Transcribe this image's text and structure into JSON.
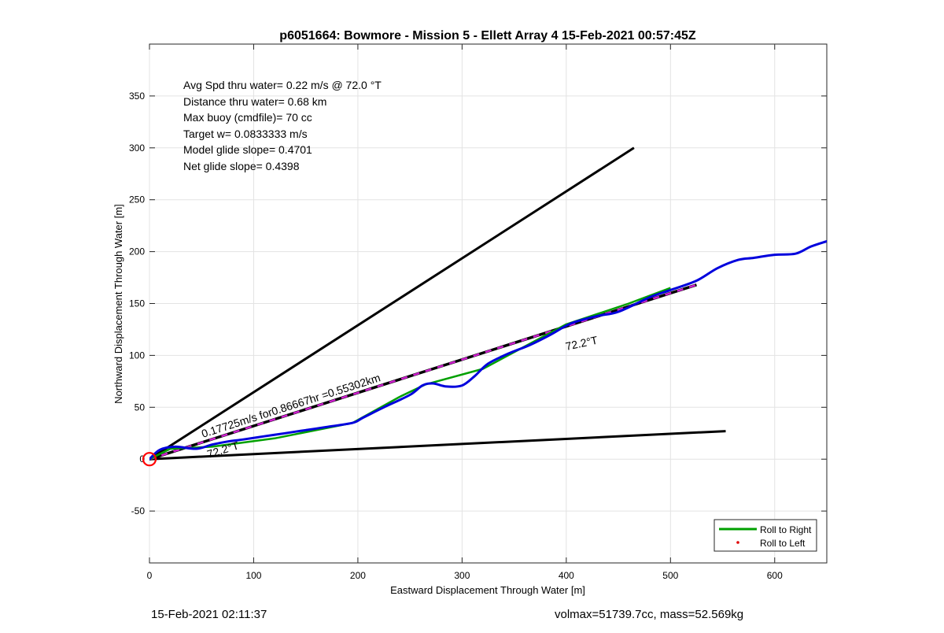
{
  "footer": {
    "timestamp": "15-Feb-2021 02:11:37",
    "volmax_mass": "volmax=51739.7cc, mass=52.569kg"
  },
  "chart_data": {
    "type": "line",
    "title": "p6051664: Bowmore - Mission 5 - Ellett Array 4 15-Feb-2021 00:57:45Z",
    "xlabel": "Eastward Displacement Through Water [m]",
    "ylabel": "Northward Displacement Through Water [m]",
    "xlim": [
      0,
      650
    ],
    "ylim": [
      -100,
      400
    ],
    "xticks": [
      0,
      100,
      200,
      300,
      400,
      500,
      600
    ],
    "yticks": [
      -50,
      0,
      50,
      100,
      150,
      200,
      250,
      300,
      350
    ],
    "grid": true,
    "stats_text": [
      "Avg Spd thru water=  0.22 m/s @  72.0 °T",
      "Distance thru water=  0.68 km",
      "Max buoy (cmdfile)= 70 cc",
      "Target w= 0.0833333 m/s",
      "Model glide slope= 0.4701",
      "Net glide slope= 0.4398"
    ],
    "annotations": {
      "current_label": "0.17725m/s for0.86667hr =0.55302km",
      "heading_label_main": "72.2°T",
      "heading_label_small": "72.2°T"
    },
    "legend": {
      "placement": "bottom-right",
      "entries": [
        {
          "name": "Roll to Right",
          "color": "#00a000",
          "style": "line"
        },
        {
          "name": "Roll to Left",
          "color": "#e00000",
          "style": "dot"
        }
      ]
    },
    "origin_marker": {
      "x": 0,
      "y": 0,
      "color": "#ff0000"
    },
    "series": [
      {
        "role": "envelope_upper",
        "color": "#000000",
        "x": [
          0,
          465
        ],
        "y": [
          0,
          300
        ]
      },
      {
        "role": "envelope_lower",
        "color": "#000000",
        "x": [
          0,
          553
        ],
        "y": [
          0,
          27
        ]
      },
      {
        "role": "heading_line",
        "color": "#000000",
        "dash_color": "#d020d0",
        "x": [
          0,
          525
        ],
        "y": [
          0,
          168
        ]
      },
      {
        "name": "Roll to Right",
        "color": "#00a000",
        "x": [
          0,
          20,
          60,
          120,
          195,
          240,
          265,
          320,
          400,
          460,
          500
        ],
        "y": [
          0,
          10,
          12,
          20,
          35,
          60,
          72,
          87,
          130,
          150,
          165
        ]
      },
      {
        "role": "track",
        "color": "#0000dd",
        "x": [
          0,
          10,
          25,
          45,
          60,
          75,
          90,
          110,
          130,
          150,
          170,
          195,
          205,
          225,
          250,
          262,
          272,
          285,
          300,
          312,
          325,
          345,
          365,
          385,
          405,
          430,
          450,
          480,
          500,
          525,
          545,
          565,
          580,
          600,
          620,
          635,
          650
        ],
        "y": [
          0,
          9,
          12,
          10,
          14,
          17,
          19,
          22,
          25,
          28,
          31,
          35,
          40,
          50,
          62,
          71,
          73,
          70,
          71,
          80,
          92,
          102,
          110,
          120,
          131,
          138,
          142,
          156,
          163,
          172,
          184,
          192,
          194,
          197,
          198,
          205,
          210
        ]
      }
    ]
  }
}
